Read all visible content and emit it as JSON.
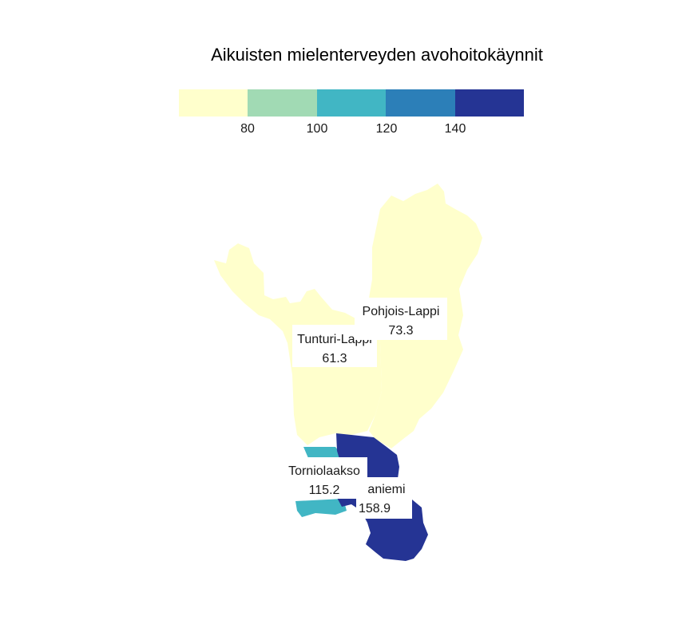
{
  "title": "Aikuisten mielenterveyden avohoitokäynnit",
  "legend": {
    "breaks": [
      "80",
      "100",
      "120",
      "140"
    ],
    "colors": [
      "#ffffcc",
      "#a1dab4",
      "#41b6c4",
      "#2c7fb8",
      "#253494"
    ]
  },
  "regions": [
    {
      "name": "Tunturi-Lappi",
      "value": "61.3",
      "color": "#ffffcc"
    },
    {
      "name": "Pohjois-Lappi",
      "value": "73.3",
      "color": "#ffffcc"
    },
    {
      "name": "Torniolaakso",
      "value": "115.2",
      "color": "#41b6c4"
    },
    {
      "name": "aniemi",
      "value": "158.9",
      "color": "#253494"
    }
  ]
}
